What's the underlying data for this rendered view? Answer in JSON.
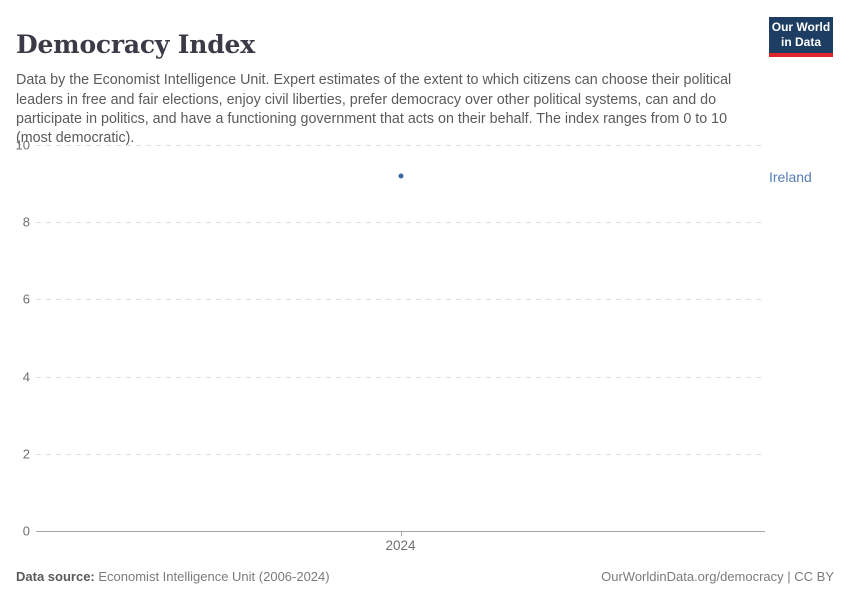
{
  "header": {
    "title": "Democracy Index",
    "subtitle": "Data by the Economist Intelligence Unit. Expert estimates of the extent to which citizens can choose their political leaders in free and fair elections, enjoy civil liberties, prefer democracy over other political systems, can and do participate in politics, and have a functioning government that acts on their behalf. The index ranges from 0 to 10 (most democratic).",
    "logo": {
      "line1": "Our World",
      "line2": "in Data",
      "bg_color": "#1d3d63",
      "bar_color": "#e0262c"
    }
  },
  "chart_data": {
    "type": "scatter",
    "title": "Democracy Index",
    "x": [
      2024
    ],
    "xticks": [
      "2024"
    ],
    "series": [
      {
        "name": "Ireland",
        "x": [
          2024
        ],
        "values": [
          9.19
        ],
        "color": "#3b66a2"
      }
    ],
    "entity_label": "Ireland",
    "entity_label_color": "#577eb5",
    "xlabel": "",
    "ylabel": "",
    "ylim": [
      0,
      10
    ],
    "yticks": [
      0,
      2,
      4,
      6,
      8,
      10
    ],
    "grid": "horizontal-dashed",
    "legend_position": "right-of-point"
  },
  "footer": {
    "source_label": "Data source:",
    "source_text": " Economist Intelligence Unit (2006-2024)",
    "link_text": "OurWorldinData.org/democracy | CC BY"
  }
}
